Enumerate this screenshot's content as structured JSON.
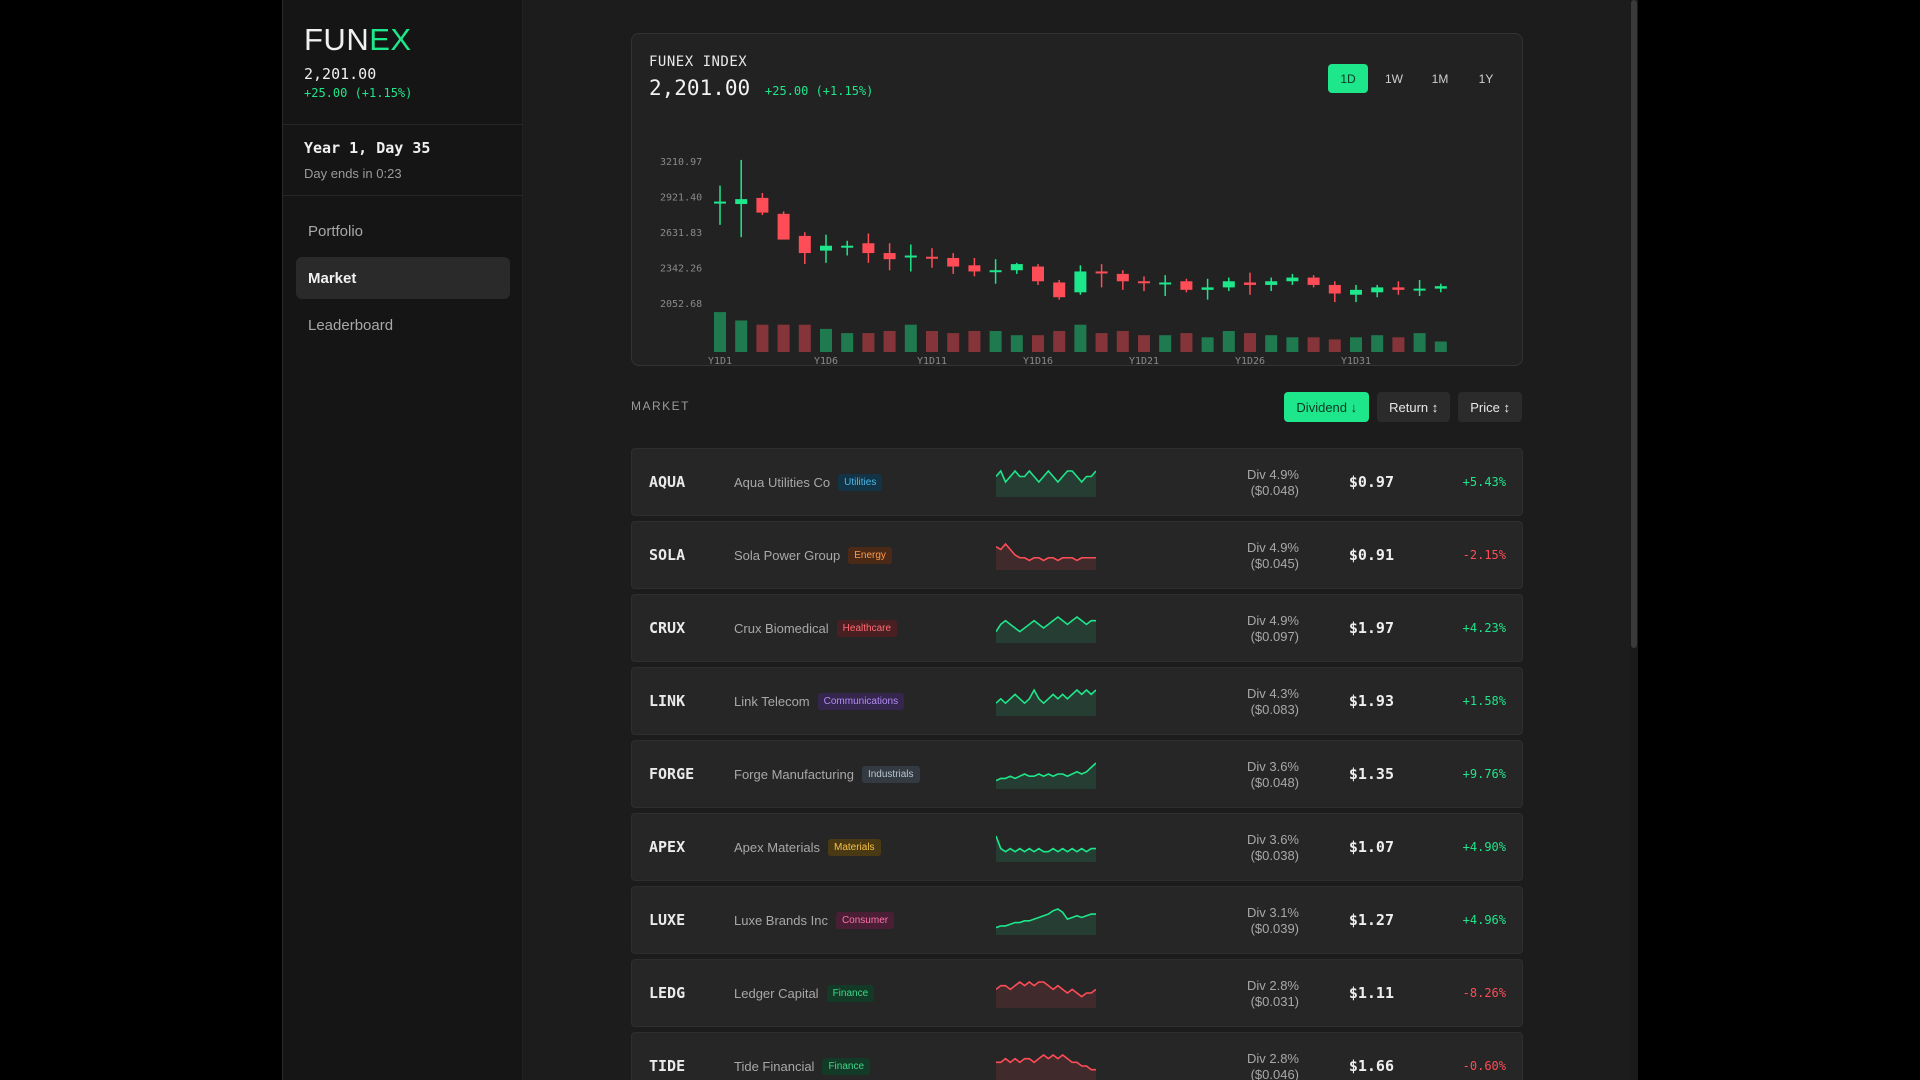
{
  "sidebar": {
    "logo_prefix": "FUN",
    "logo_accent": "EX",
    "index_price": "2,201.00",
    "index_change": "+25.00 (+1.15%)",
    "day_label": "Year 1, Day 35",
    "day_ends": "Day ends in 0:23",
    "nav": [
      {
        "label": "Portfolio",
        "active": false
      },
      {
        "label": "Market",
        "active": true
      },
      {
        "label": "Leaderboard",
        "active": false
      }
    ]
  },
  "index_card": {
    "title": "FUNEX INDEX",
    "price": "2,201.00",
    "change": "+25.00 (+1.15%)",
    "ranges": [
      {
        "label": "1D",
        "active": true
      },
      {
        "label": "1W",
        "active": false
      },
      {
        "label": "1M",
        "active": false
      },
      {
        "label": "1Y",
        "active": false
      }
    ]
  },
  "chart_data": {
    "type": "candlestick",
    "y_ticks": [
      "3210.97",
      "2921.40",
      "2631.83",
      "2342.26",
      "2052.68"
    ],
    "y_tick_values": [
      3210.97,
      2921.4,
      2631.83,
      2342.26,
      2052.68
    ],
    "x_ticks": [
      "Y1D1",
      "Y1D6",
      "Y1D11",
      "Y1D16",
      "Y1D21",
      "Y1D26",
      "Y1D31"
    ],
    "x_tick_index": [
      0,
      5,
      10,
      15,
      20,
      25,
      30
    ],
    "ylim": [
      2052.68,
      3210.97
    ],
    "candles": [
      {
        "o": 2880,
        "h": 3010,
        "l": 2690,
        "c": 2880
      },
      {
        "o": 2860,
        "h": 3220,
        "l": 2590,
        "c": 2900
      },
      {
        "o": 2910,
        "h": 2950,
        "l": 2770,
        "c": 2790
      },
      {
        "o": 2780,
        "h": 2800,
        "l": 2580,
        "c": 2570
      },
      {
        "o": 2600,
        "h": 2630,
        "l": 2370,
        "c": 2460
      },
      {
        "o": 2480,
        "h": 2610,
        "l": 2380,
        "c": 2520
      },
      {
        "o": 2510,
        "h": 2560,
        "l": 2440,
        "c": 2520
      },
      {
        "o": 2540,
        "h": 2620,
        "l": 2380,
        "c": 2460
      },
      {
        "o": 2460,
        "h": 2540,
        "l": 2320,
        "c": 2410
      },
      {
        "o": 2430,
        "h": 2530,
        "l": 2310,
        "c": 2440
      },
      {
        "o": 2430,
        "h": 2500,
        "l": 2340,
        "c": 2420
      },
      {
        "o": 2420,
        "h": 2460,
        "l": 2290,
        "c": 2350
      },
      {
        "o": 2360,
        "h": 2420,
        "l": 2270,
        "c": 2310
      },
      {
        "o": 2320,
        "h": 2410,
        "l": 2210,
        "c": 2320
      },
      {
        "o": 2320,
        "h": 2380,
        "l": 2290,
        "c": 2370
      },
      {
        "o": 2350,
        "h": 2370,
        "l": 2200,
        "c": 2230
      },
      {
        "o": 2220,
        "h": 2240,
        "l": 2080,
        "c": 2100
      },
      {
        "o": 2140,
        "h": 2360,
        "l": 2120,
        "c": 2310
      },
      {
        "o": 2310,
        "h": 2370,
        "l": 2180,
        "c": 2300
      },
      {
        "o": 2290,
        "h": 2320,
        "l": 2160,
        "c": 2230
      },
      {
        "o": 2230,
        "h": 2270,
        "l": 2150,
        "c": 2220
      },
      {
        "o": 2210,
        "h": 2280,
        "l": 2110,
        "c": 2220
      },
      {
        "o": 2230,
        "h": 2250,
        "l": 2140,
        "c": 2160
      },
      {
        "o": 2160,
        "h": 2250,
        "l": 2080,
        "c": 2180
      },
      {
        "o": 2180,
        "h": 2260,
        "l": 2150,
        "c": 2230
      },
      {
        "o": 2220,
        "h": 2300,
        "l": 2120,
        "c": 2200
      },
      {
        "o": 2200,
        "h": 2260,
        "l": 2150,
        "c": 2230
      },
      {
        "o": 2230,
        "h": 2290,
        "l": 2200,
        "c": 2260
      },
      {
        "o": 2260,
        "h": 2280,
        "l": 2180,
        "c": 2200
      },
      {
        "o": 2200,
        "h": 2230,
        "l": 2060,
        "c": 2130
      },
      {
        "o": 2120,
        "h": 2200,
        "l": 2060,
        "c": 2160
      },
      {
        "o": 2140,
        "h": 2200,
        "l": 2100,
        "c": 2180
      },
      {
        "o": 2180,
        "h": 2230,
        "l": 2120,
        "c": 2160
      },
      {
        "o": 2160,
        "h": 2240,
        "l": 2110,
        "c": 2170
      },
      {
        "o": 2170,
        "h": 2210,
        "l": 2140,
        "c": 2190
      }
    ],
    "volume": [
      95,
      75,
      65,
      65,
      65,
      55,
      45,
      45,
      50,
      65,
      50,
      45,
      50,
      50,
      40,
      40,
      50,
      65,
      45,
      50,
      40,
      40,
      45,
      35,
      50,
      45,
      40,
      35,
      35,
      30,
      35,
      40,
      35,
      45,
      25
    ],
    "colors": {
      "up": "#1ee68a",
      "down": "#ff4d57"
    }
  },
  "market": {
    "label": "MARKET",
    "sort_buttons": [
      {
        "label": "Dividend ↓",
        "active": true
      },
      {
        "label": "Return ↕",
        "active": false
      },
      {
        "label": "Price ↕",
        "active": false
      }
    ],
    "rows": [
      {
        "ticker": "AQUA",
        "name": "Aqua Utilities Co",
        "sector": "Utilities",
        "tag_bg": "#123446",
        "tag_fg": "#4cb8e8",
        "div": "Div 4.9%",
        "div_amt": "($0.048)",
        "price": "$0.97",
        "change": "+5.43%",
        "up": true,
        "spark": [
          5,
          6,
          4,
          5,
          6,
          5,
          5,
          6,
          5,
          4,
          5,
          6,
          5,
          4,
          5,
          6,
          6,
          5,
          4,
          5,
          5,
          6
        ]
      },
      {
        "ticker": "SOLA",
        "name": "Sola Power Group",
        "sector": "Energy",
        "tag_bg": "#4a2a16",
        "tag_fg": "#ff9a4d",
        "div": "Div 4.9%",
        "div_amt": "($0.045)",
        "price": "$0.91",
        "change": "-2.15%",
        "up": false,
        "spark": [
          9,
          8,
          10,
          8,
          6,
          5,
          5,
          4,
          5,
          5,
          4,
          5,
          5,
          4,
          5,
          5,
          5,
          4,
          5,
          5,
          5,
          5
        ]
      },
      {
        "ticker": "CRUX",
        "name": "Crux Biomedical",
        "sector": "Healthcare",
        "tag_bg": "#4a1f22",
        "tag_fg": "#ff6b75",
        "div": "Div 4.9%",
        "div_amt": "($0.097)",
        "price": "$1.97",
        "change": "+4.23%",
        "up": true,
        "spark": [
          4,
          6,
          7,
          6,
          5,
          4,
          5,
          6,
          7,
          6,
          5,
          6,
          7,
          8,
          7,
          6,
          7,
          8,
          7,
          6,
          7,
          7
        ]
      },
      {
        "ticker": "LINK",
        "name": "Link Telecom",
        "sector": "Communications",
        "tag_bg": "#35264e",
        "tag_fg": "#b48cf5",
        "div": "Div 4.3%",
        "div_amt": "($0.083)",
        "price": "$1.93",
        "change": "+1.58%",
        "up": true,
        "spark": [
          5,
          6,
          5,
          6,
          7,
          6,
          5,
          6,
          8,
          6,
          5,
          6,
          7,
          6,
          7,
          6,
          7,
          8,
          7,
          8,
          7,
          8
        ]
      },
      {
        "ticker": "FORGE",
        "name": "Forge Manufacturing",
        "sector": "Industrials",
        "tag_bg": "#333a42",
        "tag_fg": "#b8c4d0",
        "div": "Div 3.6%",
        "div_amt": "($0.048)",
        "price": "$1.35",
        "change": "+9.76%",
        "up": true,
        "spark": [
          2,
          3,
          3,
          4,
          3,
          4,
          5,
          4,
          4,
          5,
          4,
          5,
          4,
          5,
          5,
          4,
          5,
          6,
          5,
          6,
          8,
          10
        ]
      },
      {
        "ticker": "APEX",
        "name": "Apex Materials",
        "sector": "Materials",
        "tag_bg": "#4a3a14",
        "tag_fg": "#f5c043",
        "div": "Div 3.6%",
        "div_amt": "($0.038)",
        "price": "$1.07",
        "change": "+4.90%",
        "up": true,
        "spark": [
          9,
          5,
          4,
          5,
          4,
          5,
          4,
          5,
          4,
          5,
          4,
          4,
          5,
          4,
          5,
          4,
          5,
          4,
          5,
          4,
          5,
          5
        ]
      },
      {
        "ticker": "LUXE",
        "name": "Luxe Brands Inc",
        "sector": "Consumer",
        "tag_bg": "#4a1f35",
        "tag_fg": "#ff6fae",
        "div": "Div 3.1%",
        "div_amt": "($0.039)",
        "price": "$1.27",
        "change": "+4.96%",
        "up": true,
        "spark": [
          2,
          3,
          3,
          4,
          5,
          5,
          6,
          6,
          7,
          8,
          9,
          10,
          12,
          13,
          11,
          7,
          8,
          9,
          8,
          9,
          10,
          10
        ]
      },
      {
        "ticker": "LEDG",
        "name": "Ledger Capital",
        "sector": "Finance",
        "tag_bg": "#133a26",
        "tag_fg": "#3fd68a",
        "div": "Div 2.8%",
        "div_amt": "($0.031)",
        "price": "$1.11",
        "change": "-8.26%",
        "up": false,
        "spark": [
          8,
          9,
          9,
          8,
          9,
          10,
          9,
          10,
          9,
          10,
          10,
          9,
          8,
          9,
          8,
          7,
          8,
          7,
          6,
          7,
          7,
          8
        ]
      },
      {
        "ticker": "TIDE",
        "name": "Tide Financial",
        "sector": "Finance",
        "tag_bg": "#133a26",
        "tag_fg": "#3fd68a",
        "div": "Div 2.8%",
        "div_amt": "($0.046)",
        "price": "$1.66",
        "change": "-0.60%",
        "up": false,
        "spark": [
          10,
          10,
          11,
          10,
          11,
          10,
          11,
          11,
          10,
          11,
          12,
          11,
          12,
          11,
          12,
          11,
          10,
          10,
          9,
          9,
          8,
          8
        ]
      }
    ]
  }
}
